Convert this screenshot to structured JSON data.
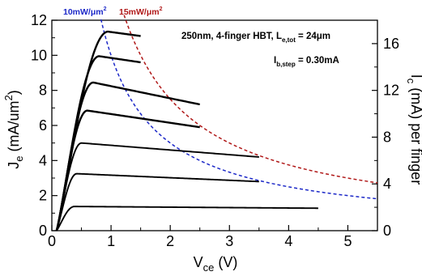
{
  "chart_data": {
    "type": "line",
    "xlabel": {
      "main": "V",
      "sub": "ce",
      "unit": " (V)"
    },
    "ylabel_left": {
      "main": "J",
      "sub": "e",
      "unit": " (mA/um",
      "sup": "2",
      "close": ")"
    },
    "ylabel_right": {
      "main": "I",
      "sub": "c",
      "unit": " (mA) per finger"
    },
    "xlim": [
      0,
      5.5
    ],
    "ylim_left": [
      0,
      12
    ],
    "ylim_right": [
      0,
      18
    ],
    "x_ticks": [
      "0",
      "1",
      "2",
      "3",
      "4",
      "5"
    ],
    "y_ticks_left": [
      "0",
      "2",
      "4",
      "6",
      "8",
      "10",
      "12"
    ],
    "y_ticks_right": [
      "0",
      "4",
      "8",
      "12",
      "16"
    ],
    "annotation_device": {
      "text": "250nm, 4-finger HBT, L",
      "sub": "e,tot",
      "rest": " = 24μm"
    },
    "annotation_step": {
      "text": "I",
      "sub": "b,step",
      "rest": " = 0.30mA"
    },
    "series": [
      {
        "knee": 0.38,
        "vend": 4.5,
        "y_sat": 1.38,
        "y_end": 1.28
      },
      {
        "knee": 0.42,
        "vend": 3.5,
        "y_sat": 3.25,
        "y_end": 2.8
      },
      {
        "knee": 0.5,
        "vend": 3.5,
        "y_sat": 5.0,
        "y_end": 4.2
      },
      {
        "knee": 0.6,
        "vend": 2.5,
        "y_sat": 6.85,
        "y_end": 5.9
      },
      {
        "knee": 0.7,
        "vend": 2.5,
        "y_sat": 8.45,
        "y_end": 7.2
      },
      {
        "knee": 0.8,
        "vend": 1.5,
        "y_sat": 9.95,
        "y_end": 9.6
      },
      {
        "knee": 0.95,
        "vend": 1.5,
        "y_sat": 11.35,
        "y_end": 11.1
      }
    ],
    "power_contours": [
      {
        "label": "10mW/μm",
        "sup": "2",
        "power": 10,
        "color": "#1c28c8",
        "x_from": 0.83,
        "x_to": 5.5
      },
      {
        "label": "15mW/μm",
        "sup": "2",
        "power": 15,
        "color": "#b01818",
        "x_from": 1.22,
        "x_to": 5.5
      }
    ]
  }
}
